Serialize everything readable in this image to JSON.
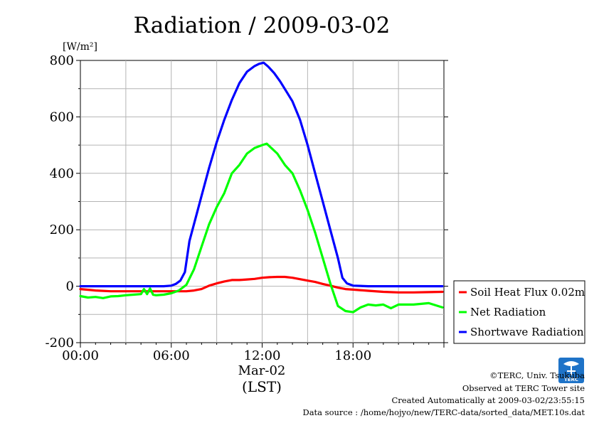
{
  "chart_data": {
    "type": "line",
    "title": "Radiation / 2009-03-02",
    "ylabel": "[W/m²]",
    "ylim": [
      -200,
      800
    ],
    "y_ticks": [
      "800",
      "600",
      "400",
      "200",
      "0",
      "-200"
    ],
    "y_tick_values": [
      800,
      600,
      400,
      200,
      0,
      -200
    ],
    "xlim": [
      0,
      24
    ],
    "x_ticks": [
      "00:00",
      "06:00",
      "12:00",
      "18:00"
    ],
    "x_tick_values": [
      0,
      6,
      12,
      18
    ],
    "date_label": "Mar-02",
    "xlabel": "(LST)",
    "grid": true,
    "legend": "outside-right",
    "series": [
      {
        "name": "Soil Heat Flux 0.02m",
        "color": "#ff0000",
        "x": [
          0,
          1,
          2,
          3,
          4,
          5,
          6,
          7,
          7.5,
          8,
          8.5,
          9,
          9.5,
          10,
          10.5,
          11,
          11.5,
          12,
          12.5,
          13,
          13.5,
          14,
          14.5,
          15,
          15.5,
          16,
          16.5,
          17,
          17.5,
          18,
          19,
          20,
          21,
          22,
          23,
          23.9
        ],
        "y": [
          -10,
          -15,
          -18,
          -18,
          -18,
          -18,
          -18,
          -18,
          -15,
          -10,
          2,
          10,
          17,
          22,
          22,
          24,
          26,
          30,
          32,
          33,
          33,
          30,
          25,
          20,
          15,
          8,
          2,
          -5,
          -10,
          -12,
          -16,
          -20,
          -22,
          -22,
          -21,
          -20
        ]
      },
      {
        "name": "Net Radiation",
        "color": "#00ff00",
        "x": [
          0,
          0.5,
          1,
          1.5,
          2,
          2.5,
          3,
          3.5,
          4,
          4.2,
          4.4,
          4.6,
          4.8,
          5,
          5.5,
          6,
          6.5,
          7,
          7.5,
          8,
          8.5,
          9,
          9.5,
          10,
          10.5,
          11,
          11.5,
          12,
          12.3,
          12.6,
          13,
          13.5,
          14,
          14.5,
          15,
          15.5,
          16,
          16.5,
          17,
          17.5,
          18,
          18.5,
          19,
          19.5,
          20,
          20.5,
          21,
          22,
          23,
          23.9
        ],
        "y": [
          -35,
          -40,
          -38,
          -42,
          -36,
          -35,
          -32,
          -30,
          -28,
          -10,
          -28,
          -8,
          -30,
          -32,
          -30,
          -25,
          -15,
          5,
          60,
          140,
          220,
          280,
          330,
          400,
          430,
          470,
          490,
          500,
          505,
          490,
          470,
          430,
          400,
          340,
          270,
          190,
          100,
          10,
          -70,
          -88,
          -92,
          -75,
          -65,
          -68,
          -65,
          -78,
          -65,
          -65,
          -60,
          -75
        ]
      },
      {
        "name": "Shortwave Radiation",
        "color": "#0000ff",
        "x": [
          0,
          2,
          4,
          5.5,
          6,
          6.3,
          6.6,
          6.9,
          7.2,
          7.6,
          8,
          8.5,
          9,
          9.5,
          10,
          10.5,
          11,
          11.5,
          11.8,
          12.1,
          12.4,
          12.8,
          13.2,
          13.6,
          14,
          14.5,
          15,
          15.5,
          16,
          16.5,
          17,
          17.3,
          17.6,
          18,
          19,
          20,
          22,
          23.9
        ],
        "y": [
          0,
          0,
          0,
          0,
          2,
          8,
          20,
          50,
          160,
          240,
          320,
          420,
          510,
          590,
          660,
          720,
          760,
          780,
          788,
          792,
          778,
          755,
          725,
          690,
          655,
          590,
          500,
          400,
          300,
          200,
          100,
          30,
          10,
          2,
          0,
          0,
          0,
          0
        ]
      }
    ]
  },
  "footer": {
    "copyright": "©TERC, Univ. Tsukuba",
    "site": "Observed at TERC Tower site",
    "created": "Created Automatically at 2009-03-02/23:55:15",
    "source": "Data source : /home/hojyo/new/TERC-data/sorted_data/MET.10s.dat",
    "logo_text": "TERC"
  }
}
